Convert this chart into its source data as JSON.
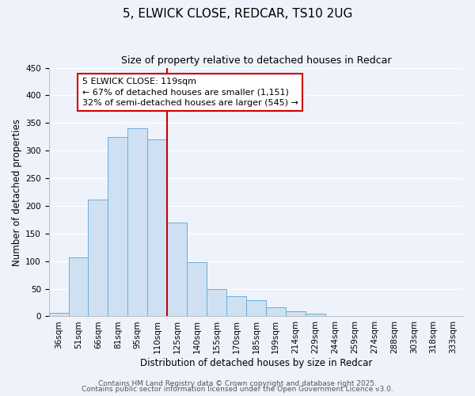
{
  "title": "5, ELWICK CLOSE, REDCAR, TS10 2UG",
  "subtitle": "Size of property relative to detached houses in Redcar",
  "xlabel": "Distribution of detached houses by size in Redcar",
  "ylabel": "Number of detached properties",
  "bar_labels": [
    "36sqm",
    "51sqm",
    "66sqm",
    "81sqm",
    "95sqm",
    "110sqm",
    "125sqm",
    "140sqm",
    "155sqm",
    "170sqm",
    "185sqm",
    "199sqm",
    "214sqm",
    "229sqm",
    "244sqm",
    "259sqm",
    "274sqm",
    "288sqm",
    "303sqm",
    "318sqm",
    "333sqm"
  ],
  "bar_values": [
    7,
    107,
    212,
    325,
    340,
    320,
    170,
    98,
    50,
    37,
    30,
    17,
    9,
    5,
    1,
    1,
    0,
    0,
    0,
    0,
    0
  ],
  "bar_color": "#cfe0f3",
  "bar_edge_color": "#6aaed6",
  "ylim": [
    0,
    450
  ],
  "yticks": [
    0,
    50,
    100,
    150,
    200,
    250,
    300,
    350,
    400,
    450
  ],
  "vline_x": 5.5,
  "vline_color": "#cc0000",
  "annotation_title": "5 ELWICK CLOSE: 119sqm",
  "annotation_line1": "← 67% of detached houses are smaller (1,151)",
  "annotation_line2": "32% of semi-detached houses are larger (545) →",
  "annotation_box_color": "#cc0000",
  "footer_line1": "Contains HM Land Registry data © Crown copyright and database right 2025.",
  "footer_line2": "Contains public sector information licensed under the Open Government Licence v3.0.",
  "background_color": "#eef2fb",
  "grid_color": "#ffffff",
  "title_fontsize": 11,
  "subtitle_fontsize": 9,
  "axis_label_fontsize": 8.5,
  "tick_fontsize": 7.5,
  "annotation_fontsize": 8,
  "footer_fontsize": 6.5
}
